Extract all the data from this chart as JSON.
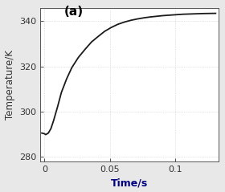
{
  "title": "",
  "xlabel": "Time/s",
  "ylabel": "Temperature/K",
  "label": "(a)",
  "xlim": [
    -0.003,
    0.133
  ],
  "ylim": [
    278,
    346
  ],
  "xticks": [
    0,
    0.05,
    0.1
  ],
  "yticks": [
    280,
    300,
    320,
    340
  ],
  "xtick_labels": [
    "0",
    "0.05",
    "0.1"
  ],
  "ytick_labels": [
    "280",
    "300",
    "320",
    "340"
  ],
  "line_color": "#1a1a1a",
  "line_width": 1.3,
  "grid_color": "#bbbbbb",
  "bg_color": "#ffffff",
  "fig_bg_color": "#e8e8e8",
  "xlabel_color": "#000080",
  "ylabel_color": "#333333",
  "curve_points": [
    [
      -0.002,
      290.5
    ],
    [
      0.0,
      290.2
    ],
    [
      0.001,
      289.8
    ],
    [
      0.003,
      290.5
    ],
    [
      0.005,
      292.5
    ],
    [
      0.007,
      296.0
    ],
    [
      0.01,
      302.0
    ],
    [
      0.013,
      308.5
    ],
    [
      0.017,
      314.5
    ],
    [
      0.021,
      319.5
    ],
    [
      0.026,
      324.0
    ],
    [
      0.031,
      327.5
    ],
    [
      0.036,
      330.8
    ],
    [
      0.041,
      333.2
    ],
    [
      0.046,
      335.5
    ],
    [
      0.051,
      337.2
    ],
    [
      0.056,
      338.6
    ],
    [
      0.061,
      339.6
    ],
    [
      0.066,
      340.4
    ],
    [
      0.071,
      341.0
    ],
    [
      0.076,
      341.5
    ],
    [
      0.081,
      341.9
    ],
    [
      0.086,
      342.2
    ],
    [
      0.091,
      342.5
    ],
    [
      0.096,
      342.7
    ],
    [
      0.101,
      342.9
    ],
    [
      0.106,
      343.1
    ],
    [
      0.111,
      343.2
    ],
    [
      0.116,
      343.3
    ],
    [
      0.121,
      343.4
    ],
    [
      0.126,
      343.45
    ],
    [
      0.131,
      343.5
    ]
  ]
}
